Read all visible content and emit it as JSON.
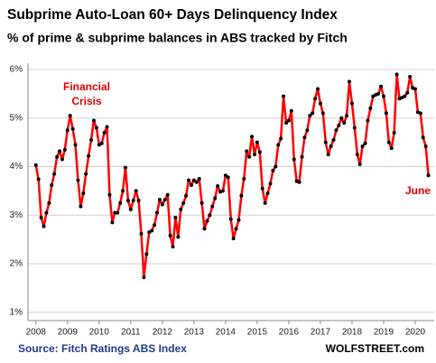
{
  "chart_data": {
    "type": "line",
    "title": "Subprime Auto-Loan 60+ Days Delinquency Index",
    "subtitle": "% of prime & subprime balances in ABS tracked by Fitch",
    "annotations": [
      "Financial Crisis",
      "June"
    ],
    "source": "Source: Fitch Ratings ABS Index",
    "credit": "WOLFSTREET.com",
    "x": [
      2008.0,
      2008.083,
      2008.167,
      2008.25,
      2008.333,
      2008.417,
      2008.5,
      2008.583,
      2008.667,
      2008.75,
      2008.833,
      2008.917,
      2009.0,
      2009.083,
      2009.167,
      2009.25,
      2009.333,
      2009.417,
      2009.5,
      2009.583,
      2009.667,
      2009.75,
      2009.833,
      2009.917,
      2010.0,
      2010.083,
      2010.167,
      2010.25,
      2010.333,
      2010.417,
      2010.5,
      2010.583,
      2010.667,
      2010.75,
      2010.833,
      2010.917,
      2011.0,
      2011.083,
      2011.167,
      2011.25,
      2011.333,
      2011.417,
      2011.5,
      2011.583,
      2011.667,
      2011.75,
      2011.833,
      2011.917,
      2012.0,
      2012.083,
      2012.167,
      2012.25,
      2012.333,
      2012.417,
      2012.5,
      2012.583,
      2012.667,
      2012.75,
      2012.833,
      2012.917,
      2013.0,
      2013.083,
      2013.167,
      2013.25,
      2013.333,
      2013.417,
      2013.5,
      2013.583,
      2013.667,
      2013.75,
      2013.833,
      2013.917,
      2014.0,
      2014.083,
      2014.167,
      2014.25,
      2014.333,
      2014.417,
      2014.5,
      2014.583,
      2014.667,
      2014.75,
      2014.833,
      2014.917,
      2015.0,
      2015.083,
      2015.167,
      2015.25,
      2015.333,
      2015.417,
      2015.5,
      2015.583,
      2015.667,
      2015.75,
      2015.833,
      2015.917,
      2016.0,
      2016.083,
      2016.167,
      2016.25,
      2016.333,
      2016.417,
      2016.5,
      2016.583,
      2016.667,
      2016.75,
      2016.833,
      2016.917,
      2017.0,
      2017.083,
      2017.167,
      2017.25,
      2017.333,
      2017.417,
      2017.5,
      2017.583,
      2017.667,
      2017.75,
      2017.833,
      2017.917,
      2018.0,
      2018.083,
      2018.167,
      2018.25,
      2018.333,
      2018.417,
      2018.5,
      2018.583,
      2018.667,
      2018.75,
      2018.833,
      2018.917,
      2019.0,
      2019.083,
      2019.167,
      2019.25,
      2019.333,
      2019.417,
      2019.5,
      2019.583,
      2019.667,
      2019.75,
      2019.833,
      2019.917,
      2020.0,
      2020.083,
      2020.167,
      2020.25,
      2020.333,
      2020.417
    ],
    "series": [
      {
        "color": "#ff0000",
        "marker_color": "#000000",
        "values": [
          4.03,
          3.74,
          2.95,
          2.77,
          3.05,
          3.25,
          3.62,
          3.85,
          4.2,
          4.32,
          4.15,
          4.35,
          4.75,
          5.05,
          4.78,
          4.45,
          3.72,
          3.18,
          3.45,
          3.85,
          4.22,
          4.55,
          4.95,
          4.8,
          4.45,
          4.48,
          4.7,
          4.82,
          3.42,
          2.85,
          3.05,
          3.05,
          3.25,
          3.5,
          3.98,
          3.3,
          3.12,
          3.3,
          3.5,
          3.3,
          2.62,
          1.72,
          2.2,
          2.65,
          2.68,
          2.8,
          3.05,
          3.32,
          3.22,
          3.32,
          3.42,
          2.58,
          2.35,
          2.95,
          2.55,
          3.12,
          3.25,
          3.4,
          3.72,
          3.62,
          3.72,
          3.68,
          3.75,
          3.25,
          2.72,
          2.88,
          3.0,
          3.18,
          3.35,
          3.6,
          3.48,
          3.5,
          3.82,
          3.78,
          2.92,
          2.52,
          2.72,
          2.9,
          3.4,
          3.75,
          4.32,
          4.2,
          4.62,
          4.25,
          4.5,
          4.3,
          3.55,
          3.25,
          3.45,
          3.65,
          3.92,
          4.0,
          4.45,
          4.58,
          5.45,
          4.9,
          4.95,
          5.15,
          4.15,
          3.7,
          3.68,
          4.2,
          4.6,
          4.75,
          5.05,
          5.1,
          5.4,
          5.6,
          5.3,
          5.1,
          4.5,
          4.25,
          4.42,
          4.55,
          4.75,
          4.85,
          5.0,
          4.9,
          5.05,
          5.75,
          5.3,
          4.8,
          4.25,
          4.05,
          4.42,
          4.48,
          4.95,
          5.2,
          5.45,
          5.48,
          5.5,
          5.65,
          5.45,
          5.1,
          4.5,
          4.38,
          4.7,
          5.9,
          5.4,
          5.42,
          5.45,
          5.52,
          5.85,
          5.62,
          5.6,
          5.12,
          5.1,
          4.6,
          4.42,
          3.82
        ]
      }
    ],
    "xlim": [
      2007.75,
      2020.6
    ],
    "xticks": [
      2008,
      2009,
      2010,
      2011,
      2012,
      2013,
      2014,
      2015,
      2016,
      2017,
      2018,
      2019,
      2020
    ],
    "ylim": [
      0.83,
      6.13
    ],
    "yticks": [
      {
        "value": 1,
        "label": "1%"
      },
      {
        "value": 2,
        "label": "2%"
      },
      {
        "value": 3,
        "label": "3%"
      },
      {
        "value": 4,
        "label": "4%"
      },
      {
        "value": 5,
        "label": "5%"
      },
      {
        "value": 6,
        "label": "6%"
      }
    ],
    "grid": true
  }
}
